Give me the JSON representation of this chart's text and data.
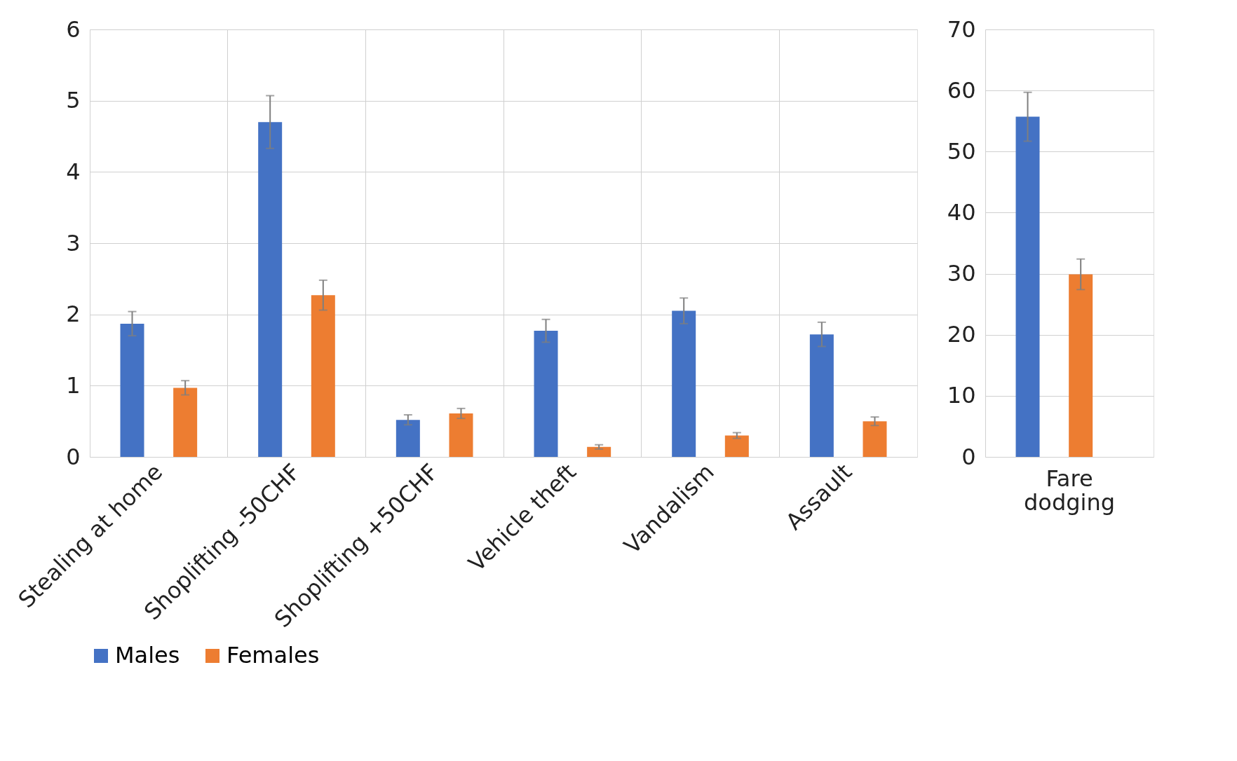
{
  "chart_data": [
    {
      "type": "bar",
      "categories": [
        "Stealing at home",
        "Shoplifting -50CHF",
        "Shoplifting +50CHF",
        "Vehicle theft",
        "Vandalism",
        "Assault"
      ],
      "series": [
        {
          "name": "Males",
          "color": "#4472c4",
          "values": [
            1.87,
            4.7,
            0.52,
            1.77,
            2.05,
            1.72
          ],
          "errors": [
            0.17,
            0.37,
            0.07,
            0.16,
            0.18,
            0.17
          ]
        },
        {
          "name": "Females",
          "color": "#ed7d31",
          "values": [
            0.97,
            2.27,
            0.61,
            0.14,
            0.3,
            0.5
          ],
          "errors": [
            0.1,
            0.21,
            0.07,
            0.03,
            0.04,
            0.06
          ]
        }
      ],
      "ylim": [
        0,
        6
      ],
      "yticks": [
        0,
        1,
        2,
        3,
        4,
        5,
        6
      ],
      "grid": true,
      "legend": "bottom"
    },
    {
      "type": "bar",
      "categories": [
        "Fare dodging"
      ],
      "series": [
        {
          "color": "#4472c4",
          "values": [
            55.7
          ],
          "errors": [
            4
          ]
        },
        {
          "color": "#ed7d31",
          "values": [
            29.9
          ],
          "errors": [
            2.5
          ]
        }
      ],
      "ylim": [
        0,
        70
      ],
      "yticks": [
        0,
        10,
        20,
        30,
        40,
        50,
        60,
        70
      ],
      "grid": true
    }
  ]
}
